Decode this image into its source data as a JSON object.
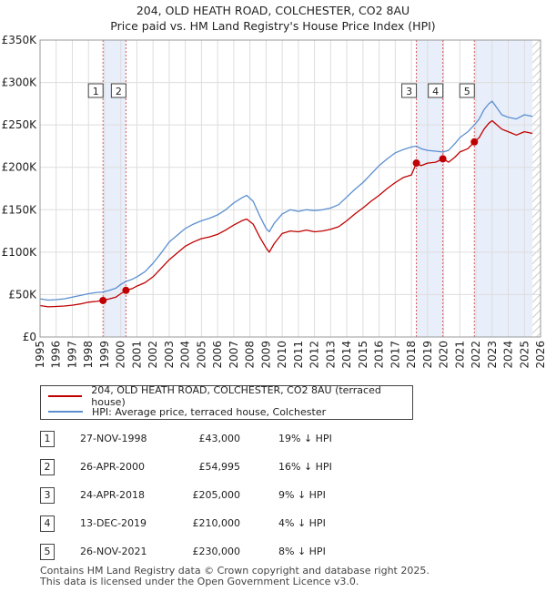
{
  "title_line1": "204, OLD HEATH ROAD, COLCHESTER, CO2 8AU",
  "title_line2": "Price paid vs. HM Land Registry's House Price Index (HPI)",
  "colors": {
    "price_paid": "#c00000",
    "hpi": "#5b8fd0",
    "shade": "#e8eefa",
    "vline": "#d55a5a",
    "grid": "#dddddd"
  },
  "legend": {
    "price_paid": "204, OLD HEATH ROAD, COLCHESTER, CO2 8AU (terraced house)",
    "hpi": "HPI: Average price, terraced house, Colchester"
  },
  "sales": [
    {
      "num": "1",
      "date": "27-NOV-1998",
      "price": "£43,000",
      "hpi": "19% ↓ HPI"
    },
    {
      "num": "2",
      "date": "26-APR-2000",
      "price": "£54,995",
      "hpi": "16% ↓ HPI"
    },
    {
      "num": "3",
      "date": "24-APR-2018",
      "price": "£205,000",
      "hpi": "9% ↓ HPI"
    },
    {
      "num": "4",
      "date": "13-DEC-2019",
      "price": "£210,000",
      "hpi": "4% ↓ HPI"
    },
    {
      "num": "5",
      "date": "26-NOV-2021",
      "price": "£230,000",
      "hpi": "8% ↓ HPI"
    }
  ],
  "footer_line1": "Contains HM Land Registry data © Crown copyright and database right 2025.",
  "footer_line2": "This data is licensed under the Open Government Licence v3.0.",
  "chart_data": {
    "type": "line",
    "title": "204, OLD HEATH ROAD, COLCHESTER, CO2 8AU",
    "subtitle": "Price paid vs. HM Land Registry's House Price Index (HPI)",
    "xlabel": "",
    "ylabel": "",
    "xlim": [
      1995,
      2026
    ],
    "ylim": [
      0,
      350000
    ],
    "y_ticks": [
      0,
      50000,
      100000,
      150000,
      200000,
      250000,
      300000,
      350000
    ],
    "y_tick_labels": [
      "£0",
      "£50K",
      "£100K",
      "£150K",
      "£200K",
      "£250K",
      "£300K",
      "£350K"
    ],
    "x_ticks": [
      1995,
      1996,
      1997,
      1998,
      1999,
      2000,
      2001,
      2002,
      2003,
      2004,
      2005,
      2006,
      2007,
      2008,
      2009,
      2010,
      2011,
      2012,
      2013,
      2014,
      2015,
      2016,
      2017,
      2018,
      2019,
      2020,
      2021,
      2022,
      2023,
      2024,
      2025,
      2026
    ],
    "x_tick_labels": [
      "1995",
      "1996",
      "1997",
      "1998",
      "1999",
      "2000",
      "2001",
      "2002",
      "2003",
      "2004",
      "2005",
      "2006",
      "2007",
      "2008",
      "2009",
      "2010",
      "2011",
      "2012",
      "2013",
      "2014",
      "2015",
      "2016",
      "2017",
      "2018",
      "2019",
      "2020",
      "2021",
      "2022",
      "2023",
      "2024",
      "2025",
      "2026"
    ],
    "shaded_periods": [
      [
        1998.9,
        2000.32
      ],
      [
        2018.31,
        2019.95
      ],
      [
        2021.9,
        2025.5
      ]
    ],
    "hatched_region": [
      2025.5,
      2026
    ],
    "grid": true,
    "series": [
      {
        "name": "204, OLD HEATH ROAD, COLCHESTER, CO2 8AU (terraced house)",
        "x": [
          1995,
          1995.5,
          1996,
          1996.5,
          1997,
          1997.5,
          1998,
          1998.5,
          1998.9,
          1999.3,
          1999.7,
          2000.0,
          2000.32,
          2000.7,
          2001,
          2001.5,
          2002,
          2002.5,
          2003,
          2003.5,
          2004,
          2004.5,
          2005,
          2005.5,
          2006,
          2006.5,
          2007,
          2007.5,
          2007.8,
          2008.2,
          2008.6,
          2009.0,
          2009.2,
          2009.5,
          2010,
          2010.5,
          2011,
          2011.5,
          2012,
          2012.5,
          2013,
          2013.5,
          2014,
          2014.5,
          2015,
          2015.5,
          2016,
          2016.5,
          2017,
          2017.5,
          2018.0,
          2018.31,
          2018.6,
          2019,
          2019.5,
          2019.95,
          2020.3,
          2020.7,
          2021,
          2021.5,
          2021.9,
          2022.2,
          2022.5,
          2022.8,
          2023.0,
          2023.3,
          2023.6,
          2024,
          2024.5,
          2025,
          2025.5
        ],
        "values": [
          37000,
          35500,
          36000,
          36500,
          37500,
          39000,
          41000,
          42000,
          43000,
          45000,
          47000,
          51000,
          54995,
          57000,
          60000,
          64000,
          71000,
          81000,
          91000,
          99000,
          107000,
          112000,
          116000,
          118000,
          121000,
          126000,
          132000,
          137000,
          139000,
          133000,
          118000,
          105000,
          100000,
          110000,
          122000,
          125000,
          124000,
          126000,
          124000,
          125000,
          127000,
          130000,
          137000,
          145000,
          152000,
          160000,
          167000,
          175000,
          182000,
          188000,
          191000,
          205000,
          202000,
          205000,
          206000,
          210000,
          206000,
          212000,
          218000,
          222000,
          230000,
          235000,
          245000,
          252000,
          255000,
          250000,
          245000,
          242000,
          238000,
          242000,
          240000
        ]
      },
      {
        "name": "HPI: Average price, terraced house, Colchester",
        "x": [
          1995,
          1995.5,
          1996,
          1996.5,
          1997,
          1997.5,
          1998,
          1998.5,
          1998.9,
          1999.3,
          1999.7,
          2000.0,
          2000.32,
          2000.7,
          2001,
          2001.5,
          2002,
          2002.5,
          2003,
          2003.5,
          2004,
          2004.5,
          2005,
          2005.5,
          2006,
          2006.5,
          2007,
          2007.5,
          2007.8,
          2008.2,
          2008.6,
          2009.0,
          2009.2,
          2009.5,
          2010,
          2010.5,
          2011,
          2011.5,
          2012,
          2012.5,
          2013,
          2013.5,
          2014,
          2014.5,
          2015,
          2015.5,
          2016,
          2016.5,
          2017,
          2017.5,
          2018.0,
          2018.31,
          2018.6,
          2019,
          2019.5,
          2019.95,
          2020.3,
          2020.7,
          2021,
          2021.5,
          2021.9,
          2022.2,
          2022.5,
          2022.8,
          2023.0,
          2023.3,
          2023.6,
          2024,
          2024.5,
          2025,
          2025.5
        ],
        "values": [
          45000,
          43500,
          44000,
          45000,
          47000,
          49000,
          51000,
          52500,
          53000,
          55000,
          57500,
          62000,
          65500,
          68000,
          71000,
          77000,
          87000,
          99000,
          112000,
          120000,
          128000,
          133000,
          137000,
          140000,
          144000,
          150000,
          158000,
          164000,
          167000,
          160000,
          143000,
          128000,
          124000,
          134000,
          145000,
          150000,
          148000,
          150000,
          149000,
          150000,
          152000,
          156000,
          165000,
          174000,
          182000,
          192000,
          202000,
          210000,
          217000,
          221000,
          224000,
          225000,
          222000,
          220000,
          219000,
          218000,
          220000,
          228000,
          235000,
          242000,
          250000,
          257000,
          268000,
          275000,
          278000,
          270000,
          262000,
          259000,
          257000,
          262000,
          260000
        ]
      }
    ],
    "sale_markers": [
      {
        "label": "1",
        "x": 1998.9,
        "value": 43000
      },
      {
        "label": "2",
        "x": 2000.32,
        "value": 54995
      },
      {
        "label": "3",
        "x": 2018.31,
        "value": 205000
      },
      {
        "label": "4",
        "x": 2019.95,
        "value": 210000
      },
      {
        "label": "5",
        "x": 2021.9,
        "value": 230000
      }
    ]
  }
}
